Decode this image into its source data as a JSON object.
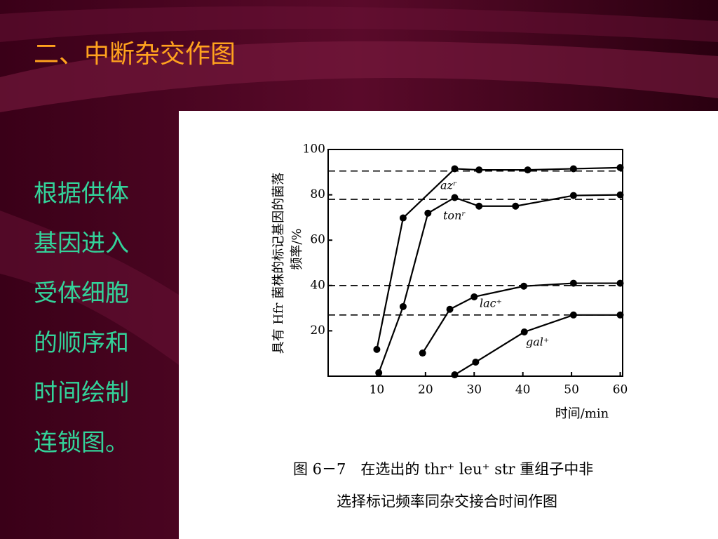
{
  "slide": {
    "title": "二、中断杂交作图",
    "body": [
      "根据供体",
      "基因进入",
      "受体细胞",
      "的顺序和",
      "时间绘制",
      "连锁图。"
    ]
  },
  "chart_data": {
    "type": "line",
    "y_label": [
      "具有 Hfr 菌株的标记基因的菌落",
      "频率/%"
    ],
    "x_label": "时间/min",
    "caption": [
      "图 6－7　在选出的 thr⁺ leu⁺ str 重组子中非",
      "选择标记频率同杂交接合时间作图"
    ],
    "xlim": [
      0,
      60.5
    ],
    "ylim": [
      0,
      100
    ],
    "xticks": [
      10,
      20,
      30,
      40,
      50,
      60
    ],
    "yticks": [
      20,
      40,
      60,
      80,
      100
    ],
    "hlines": [
      90.5,
      78,
      40,
      27
    ],
    "series": [
      {
        "name": "azʳ",
        "color": "#000000",
        "x": [
          10,
          15.4,
          26,
          31,
          41,
          50.4,
          60
        ],
        "values": [
          11.8,
          69.8,
          91.5,
          91,
          91,
          91.5,
          92
        ]
      },
      {
        "name": "tonʳ",
        "color": "#000000",
        "x": [
          10.4,
          15.4,
          20.5,
          26,
          31,
          38.5,
          50.4,
          60
        ],
        "values": [
          1.5,
          30.7,
          71.9,
          78.8,
          75,
          75,
          79.7,
          80
        ]
      },
      {
        "name": "lac⁺",
        "color": "#000000",
        "x": [
          19.4,
          25,
          30,
          40.2,
          50.4,
          60
        ],
        "values": [
          10.2,
          29.5,
          35,
          39.7,
          41,
          41
        ]
      },
      {
        "name": "gal⁺",
        "color": "#000000",
        "x": [
          26,
          30.3,
          40.3,
          50.4,
          60
        ],
        "values": [
          0.6,
          6.2,
          19.5,
          27,
          27
        ]
      }
    ]
  }
}
